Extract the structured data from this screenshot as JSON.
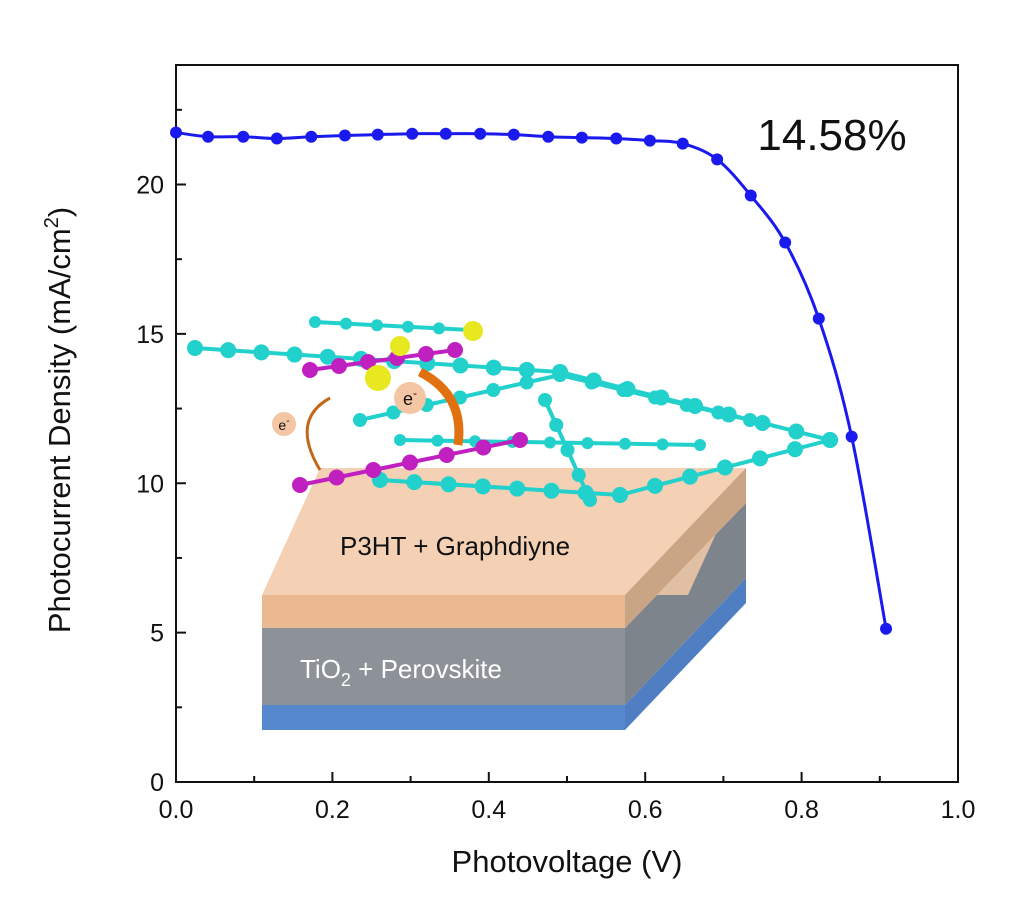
{
  "chart_data": {
    "type": "line",
    "x_label": "Photovoltage (V)",
    "y_label": {
      "text": "Photocurrent Density (mA/cm",
      "sup": "2",
      "end": ")"
    },
    "annotation": "14.58%",
    "inset_labels": {
      "top_layer": "P3HT + Graphdiyne",
      "bottom_layer": {
        "text": "TiO",
        "sub": "2",
        "rest": " + Perovskite"
      },
      "electron": {
        "text": "e",
        "sup": "-"
      }
    },
    "xlim": [
      0,
      1
    ],
    "ylim": [
      0,
      24
    ],
    "xticks": [
      {
        "value": 0,
        "label": "0.0"
      },
      0.2,
      0.4,
      0.6,
      0.8,
      {
        "value": 1,
        "label": "1.0"
      }
    ],
    "yticks": [
      0,
      5,
      10,
      15,
      20
    ],
    "xminorticks": [
      0.1,
      0.3,
      0.5,
      0.7,
      0.9
    ],
    "yminorticks": [
      2.5,
      7.5,
      12.5,
      17.5,
      22.5
    ],
    "series": [
      {
        "color": "#1a1aee",
        "x": [
          0,
          0.041,
          0.086,
          0.129,
          0.173,
          0.216,
          0.258,
          0.302,
          0.345,
          0.389,
          0.432,
          0.476,
          0.519,
          0.563,
          0.606,
          0.648,
          0.692,
          0.735,
          0.779,
          0.822,
          0.864,
          0.908
        ],
        "values": [
          21.74,
          21.6,
          21.6,
          21.54,
          21.6,
          21.64,
          21.67,
          21.7,
          21.7,
          21.7,
          21.67,
          21.6,
          21.57,
          21.54,
          21.47,
          21.37,
          20.84,
          19.63,
          18.06,
          15.51,
          11.56,
          5.13
        ]
      }
    ]
  }
}
